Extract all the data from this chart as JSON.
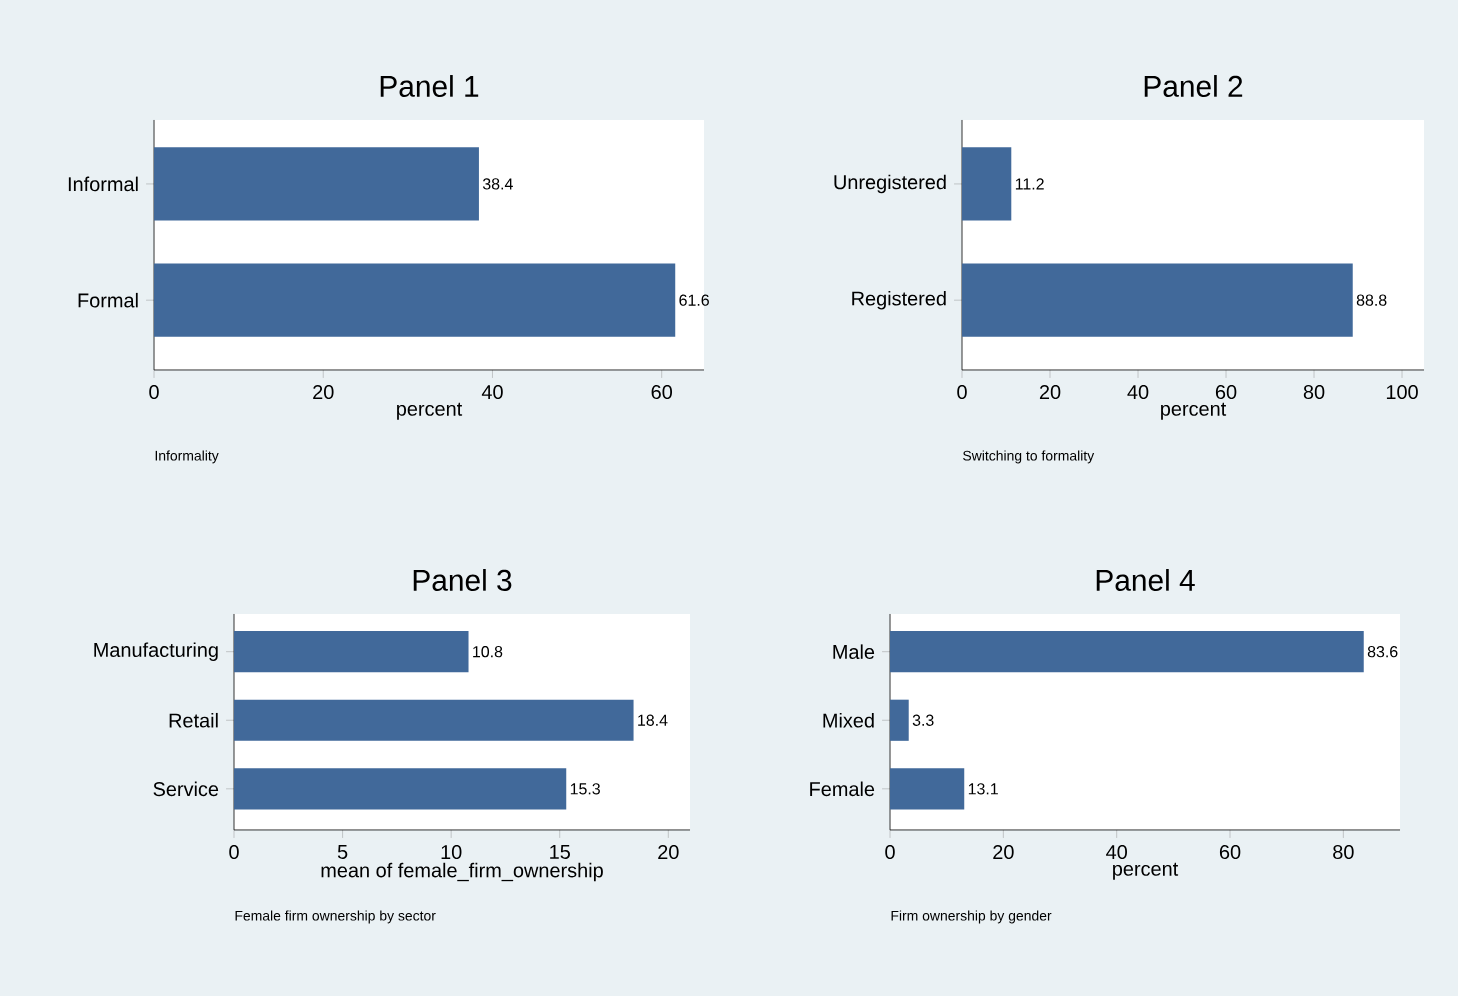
{
  "chart_data": [
    {
      "type": "bar",
      "orientation": "horizontal",
      "title": "Panel 1",
      "categories": [
        "Informal",
        "Formal"
      ],
      "values": [
        38.4,
        61.6
      ],
      "color": "#41699a",
      "xlim": [
        0,
        65
      ],
      "xticks": [
        0,
        20,
        40,
        60
      ],
      "xlabel": "percent",
      "data_labels": true,
      "annotations": [
        "Informality"
      ]
    },
    {
      "type": "bar",
      "orientation": "horizontal",
      "title": "Panel 2",
      "categories": [
        "Unregistered",
        "Registered"
      ],
      "values": [
        11.2,
        88.8
      ],
      "color": "#41699a",
      "xlim": [
        0,
        105
      ],
      "xticks": [
        0,
        20,
        40,
        60,
        80,
        100
      ],
      "xlabel": "percent",
      "data_labels": true,
      "annotations": [
        "Switching to formality"
      ]
    },
    {
      "type": "bar",
      "orientation": "horizontal",
      "title": "Panel 3",
      "categories": [
        "Manufacturing",
        "Retail",
        "Service"
      ],
      "values": [
        10.8,
        18.4,
        15.3
      ],
      "color": "#41699a",
      "xlim": [
        0,
        21
      ],
      "xticks": [
        0,
        5,
        10,
        15,
        20
      ],
      "xlabel": "mean of female_firm_ownership",
      "data_labels": true,
      "annotations": [
        "Female firm ownership by sector"
      ]
    },
    {
      "type": "bar",
      "orientation": "horizontal",
      "title": "Panel 4",
      "categories": [
        "Male",
        "Mixed",
        "Female"
      ],
      "values": [
        83.6,
        3.3,
        13.1
      ],
      "color": "#41699a",
      "xlim": [
        0,
        90
      ],
      "xticks": [
        0,
        20,
        40,
        60,
        80
      ],
      "xlabel": "percent",
      "data_labels": true,
      "annotations": [
        "Firm ownership by gender"
      ]
    }
  ]
}
